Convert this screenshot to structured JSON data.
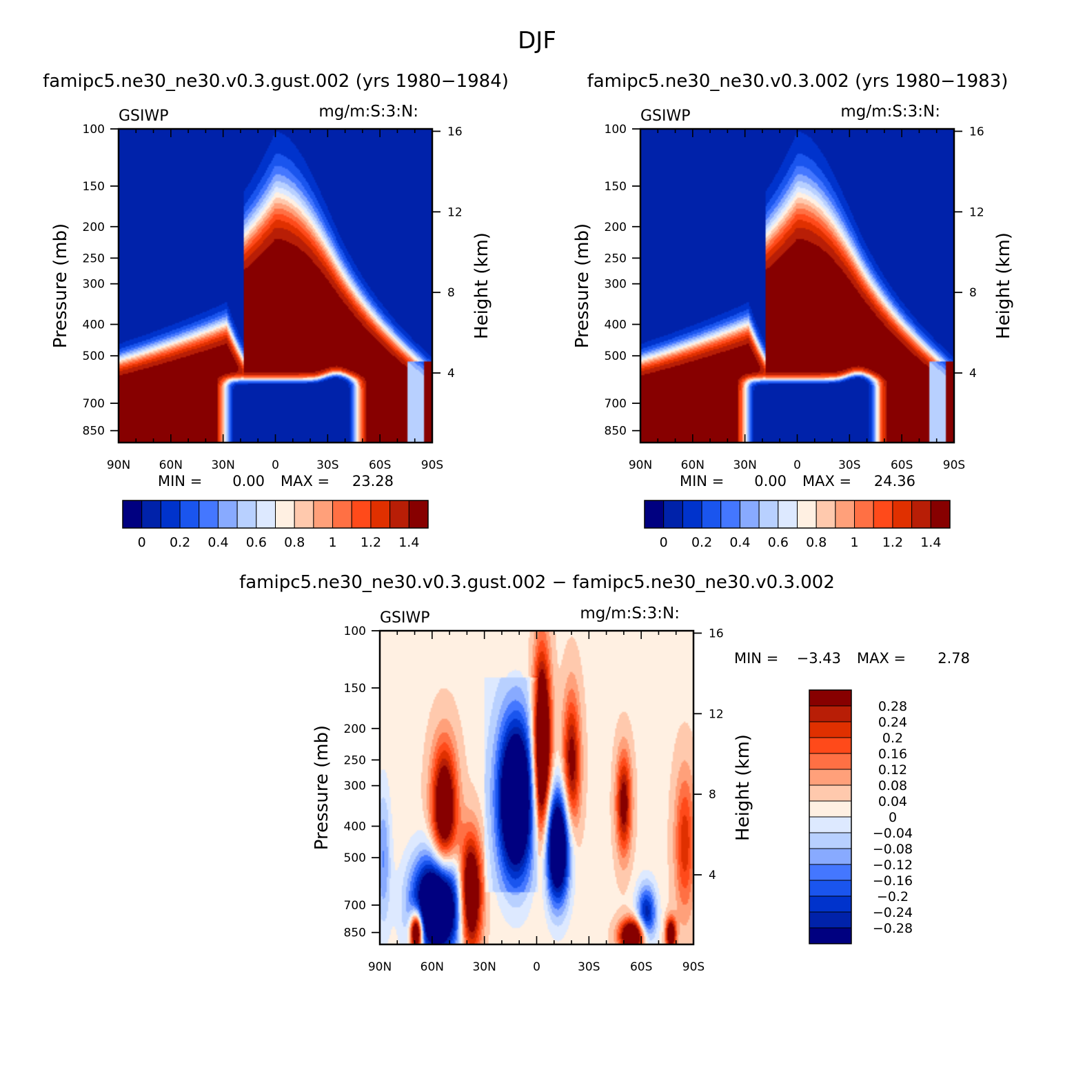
{
  "figure": {
    "title": "DJF"
  },
  "colors": {
    "panel_scale": [
      "#000080",
      "#0022aa",
      "#0033cc",
      "#1a55ee",
      "#4477ff",
      "#88aaff",
      "#b8d0ff",
      "#dde9ff",
      "#fff0e2",
      "#ffc9ad",
      "#ffa07a",
      "#ff7044",
      "#ff4a1a",
      "#e03000",
      "#b81e06",
      "#870000"
    ],
    "diff_scale": [
      "#000080",
      "#0022aa",
      "#0033cc",
      "#1a55ee",
      "#4477ff",
      "#88aaff",
      "#b8d0ff",
      "#dde9ff",
      "#fff0e2",
      "#ffc9ad",
      "#ffa07a",
      "#ff7044",
      "#ff4a1a",
      "#e03000",
      "#b81e06",
      "#870000"
    ]
  },
  "chart_data": [
    {
      "type": "heatmap",
      "title": "famipc5.ne30_ne30.v0.3.gust.002 (yrs 1980−1984)",
      "left_label": "GSIWP",
      "right_label": "mg/m:S:3:N:",
      "ylabel": "Pressure (mb)",
      "y2label": "Height (km)",
      "x_ticks": [
        "90N",
        "60N",
        "30N",
        "0",
        "30S",
        "60S",
        "90S"
      ],
      "x_values": [
        90,
        60,
        30,
        0,
        -30,
        -60,
        -90
      ],
      "y_ticks": [
        "100",
        "150",
        "200",
        "250",
        "300",
        "400",
        "500",
        "700",
        "850"
      ],
      "y_values": [
        100,
        150,
        200,
        250,
        300,
        400,
        500,
        700,
        850
      ],
      "y2_ticks": [
        "16",
        "12",
        "8",
        "4"
      ],
      "y2_values": [
        16,
        12,
        8,
        4
      ],
      "ylim": [
        100,
        925
      ],
      "stats": {
        "min_label": "MIN =",
        "min": "0.00",
        "max_label": "MAX =",
        "max": "23.28"
      },
      "colorbar_labels": [
        "0",
        "0.2",
        "0.4",
        "0.6",
        "0.8",
        "1",
        "1.2",
        "1.4"
      ],
      "colorbar_levels": [
        0,
        0.1,
        0.2,
        0.3,
        0.4,
        0.5,
        0.6,
        0.7,
        0.8,
        0.9,
        1.0,
        1.1,
        1.2,
        1.3,
        1.4
      ],
      "shift": 0
    },
    {
      "type": "heatmap",
      "title": "famipc5.ne30_ne30.v0.3.002 (yrs 1980−1983)",
      "left_label": "GSIWP",
      "right_label": "mg/m:S:3:N:",
      "ylabel": "Pressure (mb)",
      "y2label": "Height (km)",
      "x_ticks": [
        "90N",
        "60N",
        "30N",
        "0",
        "30S",
        "60S",
        "90S"
      ],
      "x_values": [
        90,
        60,
        30,
        0,
        -30,
        -60,
        -90
      ],
      "y_ticks": [
        "100",
        "150",
        "200",
        "250",
        "300",
        "400",
        "500",
        "700",
        "850"
      ],
      "y_values": [
        100,
        150,
        200,
        250,
        300,
        400,
        500,
        700,
        850
      ],
      "y2_ticks": [
        "16",
        "12",
        "8",
        "4"
      ],
      "y2_values": [
        16,
        12,
        8,
        4
      ],
      "ylim": [
        100,
        925
      ],
      "stats": {
        "min_label": "MIN =",
        "min": "0.00",
        "max_label": "MAX =",
        "max": "24.36"
      },
      "colorbar_labels": [
        "0",
        "0.2",
        "0.4",
        "0.6",
        "0.8",
        "1",
        "1.2",
        "1.4"
      ],
      "colorbar_levels": [
        0,
        0.1,
        0.2,
        0.3,
        0.4,
        0.5,
        0.6,
        0.7,
        0.8,
        0.9,
        1.0,
        1.1,
        1.2,
        1.3,
        1.4
      ],
      "shift": 1
    },
    {
      "type": "heatmap",
      "title": "famipc5.ne30_ne30.v0.3.gust.002 − famipc5.ne30_ne30.v0.3.002",
      "left_label": "GSIWP",
      "right_label": "mg/m:S:3:N:",
      "ylabel": "Pressure (mb)",
      "y2label": "Height (km)",
      "x_ticks": [
        "90N",
        "60N",
        "30N",
        "0",
        "30S",
        "60S",
        "90S"
      ],
      "x_values": [
        90,
        60,
        30,
        0,
        -30,
        -60,
        -90
      ],
      "y_ticks": [
        "100",
        "150",
        "200",
        "250",
        "300",
        "400",
        "500",
        "700",
        "850"
      ],
      "y_values": [
        100,
        150,
        200,
        250,
        300,
        400,
        500,
        700,
        850
      ],
      "y2_ticks": [
        "16",
        "12",
        "8",
        "4"
      ],
      "y2_values": [
        16,
        12,
        8,
        4
      ],
      "ylim": [
        100,
        925
      ],
      "stats": {
        "min_label": "MIN =",
        "min": "−3.43",
        "max_label": "MAX =",
        "max": "2.78"
      },
      "colorbar_labels": [
        "0.28",
        "0.24",
        "0.2",
        "0.16",
        "0.12",
        "0.08",
        "0.04",
        "0",
        "−0.04",
        "−0.08",
        "−0.12",
        "−0.16",
        "−0.2",
        "−0.24",
        "−0.28"
      ],
      "colorbar_levels": [
        -0.28,
        -0.24,
        -0.2,
        -0.16,
        -0.12,
        -0.08,
        -0.04,
        0,
        0.04,
        0.08,
        0.12,
        0.16,
        0.2,
        0.24,
        0.28
      ]
    }
  ]
}
